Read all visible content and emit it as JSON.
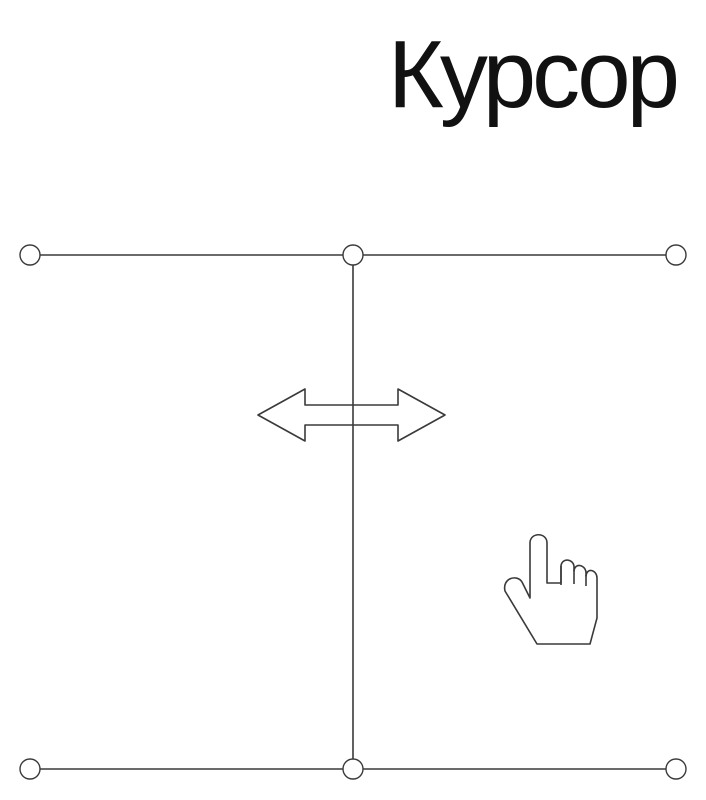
{
  "title": "Курсор",
  "colors": {
    "ink": "#3a3a3a",
    "title": "#111111",
    "background": "#ffffff"
  },
  "icons": {
    "resize": "horizontal-resize-cursor-icon",
    "hand": "hand-pointer-cursor-icon"
  }
}
